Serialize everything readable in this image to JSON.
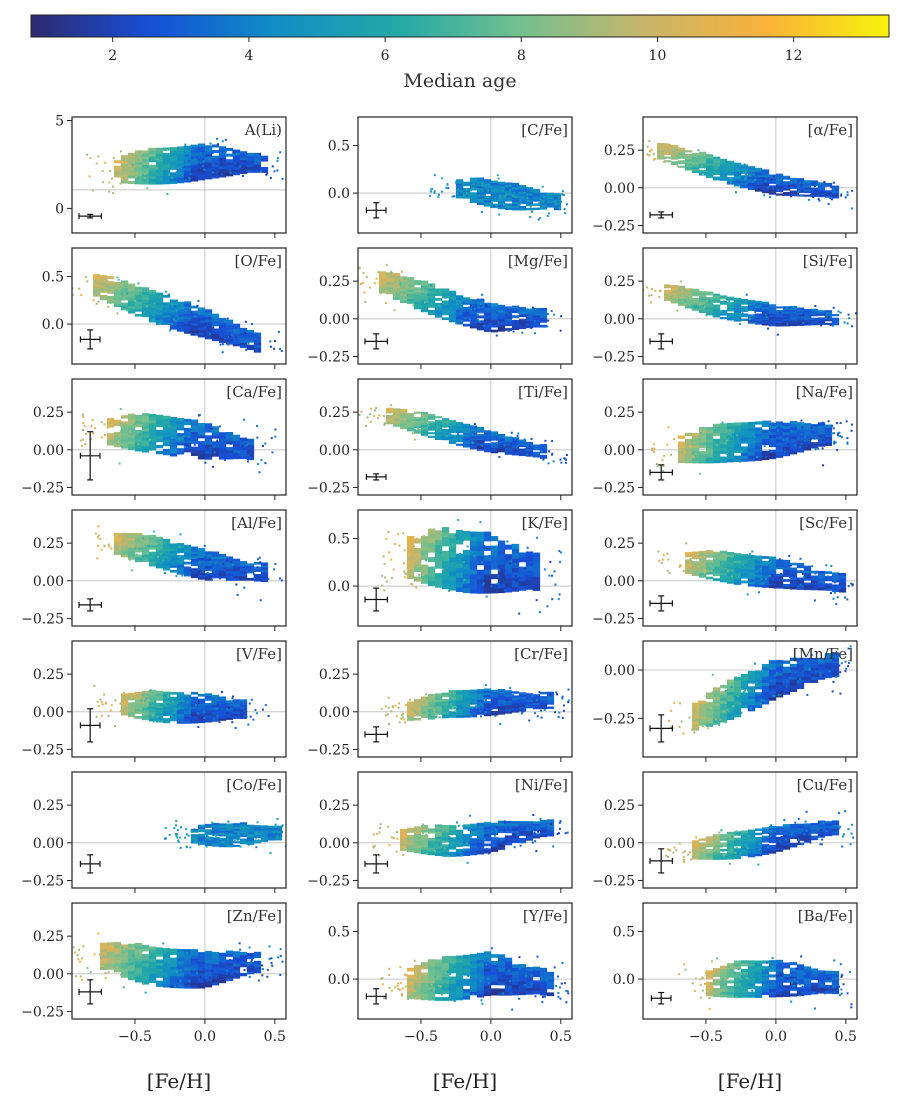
{
  "colorbar": {
    "label": "Median age",
    "range": [
      0.8,
      13.4
    ],
    "ticks": [
      "2",
      "4",
      "6",
      "8",
      "10",
      "12"
    ],
    "tick_values": [
      2,
      4,
      6,
      8,
      10,
      12
    ],
    "colormap": [
      "#2e2a6e",
      "#1650d8",
      "#0f8fc4",
      "#23a9a6",
      "#74c08f",
      "#c7b56a",
      "#f9b23a",
      "#f7f30b"
    ]
  },
  "x_axis_label": "[Fe/H]",
  "chart_data": {
    "type": "heatmap",
    "description_of_marks": "2D binned median age in [X/Fe] vs [Fe/H] planes with a typical error bar",
    "xlim": [
      -0.95,
      0.58
    ],
    "x_ticks": [
      "−0.5",
      "0.0",
      "0.5"
    ],
    "x_tick_values": [
      -0.5,
      0.0,
      0.5
    ],
    "xlabel": "[Fe/H]",
    "panels": [
      {
        "label": "A(Li)",
        "ylim": [
          -1.4,
          5.2
        ],
        "y_ticks": [
          "0",
          "5"
        ],
        "y_tick_values": [
          0,
          5
        ],
        "hline": 1.05,
        "ridge": [
          [
            -0.65,
            2.15
          ],
          [
            -0.3,
            2.4
          ],
          [
            0.0,
            2.6
          ],
          [
            0.4,
            2.6
          ]
        ],
        "spread": 0.8,
        "err": [
          0.08,
          0.1
        ],
        "old_end": "left"
      },
      {
        "label": "[C/Fe]",
        "ylim": [
          -0.42,
          0.8
        ],
        "y_ticks": [
          "0.0",
          "0.5"
        ],
        "y_tick_values": [
          0.0,
          0.5
        ],
        "hline": 0.0,
        "ridge": [
          [
            -0.25,
            0.05
          ],
          [
            0.1,
            -0.03
          ],
          [
            0.45,
            -0.1
          ]
        ],
        "spread": 0.11,
        "err": [
          0.07,
          0.08
        ],
        "old_end": "none"
      },
      {
        "label": "[α/Fe]",
        "ylim": [
          -0.3,
          0.47
        ],
        "y_ticks": [
          "−0.25",
          "0.00",
          "0.25"
        ],
        "y_tick_values": [
          -0.25,
          0.0,
          0.25
        ],
        "hline": 0.0,
        "ridge": [
          [
            -0.85,
            0.25
          ],
          [
            -0.4,
            0.12
          ],
          [
            0.0,
            0.02
          ],
          [
            0.45,
            -0.03
          ]
        ],
        "spread": 0.06,
        "err": [
          0.08,
          0.02
        ],
        "old_end": "left"
      },
      {
        "label": "[O/Fe]",
        "ylim": [
          -0.42,
          0.8
        ],
        "y_ticks": [
          "0.0",
          "0.5"
        ],
        "y_tick_values": [
          0.0,
          0.5
        ],
        "hline": 0.0,
        "ridge": [
          [
            -0.8,
            0.42
          ],
          [
            -0.4,
            0.2
          ],
          [
            0.0,
            0.0
          ],
          [
            0.4,
            -0.22
          ]
        ],
        "spread": 0.13,
        "err": [
          0.07,
          0.1
        ],
        "old_end": "left"
      },
      {
        "label": "[Mg/Fe]",
        "ylim": [
          -0.3,
          0.47
        ],
        "y_ticks": [
          "−0.25",
          "0.00",
          "0.25"
        ],
        "y_tick_values": [
          -0.25,
          0.0,
          0.25
        ],
        "hline": 0.0,
        "ridge": [
          [
            -0.8,
            0.25
          ],
          [
            -0.4,
            0.12
          ],
          [
            0.0,
            0.0
          ],
          [
            0.4,
            0.0
          ]
        ],
        "spread": 0.08,
        "err": [
          0.08,
          0.05
        ],
        "old_end": "left"
      },
      {
        "label": "[Si/Fe]",
        "ylim": [
          -0.3,
          0.47
        ],
        "y_ticks": [
          "−0.25",
          "0.00",
          "0.25"
        ],
        "y_tick_values": [
          -0.25,
          0.0,
          0.25
        ],
        "hline": 0.0,
        "ridge": [
          [
            -0.8,
            0.18
          ],
          [
            -0.4,
            0.08
          ],
          [
            0.0,
            0.02
          ],
          [
            0.45,
            0.0
          ]
        ],
        "spread": 0.06,
        "err": [
          0.08,
          0.05
        ],
        "old_end": "left"
      },
      {
        "label": "[Ca/Fe]",
        "ylim": [
          -0.3,
          0.47
        ],
        "y_ticks": [
          "−0.25",
          "0.00",
          "0.25"
        ],
        "y_tick_values": [
          -0.25,
          0.0,
          0.25
        ],
        "hline": 0.0,
        "ridge": [
          [
            -0.7,
            0.12
          ],
          [
            -0.3,
            0.1
          ],
          [
            0.0,
            0.05
          ],
          [
            0.35,
            0.0
          ]
        ],
        "spread": 0.1,
        "err": [
          0.07,
          0.16
        ],
        "old_end": "left"
      },
      {
        "label": "[Ti/Fe]",
        "ylim": [
          -0.3,
          0.47
        ],
        "y_ticks": [
          "−0.25",
          "0.00",
          "0.25"
        ],
        "y_tick_values": [
          -0.25,
          0.0,
          0.25
        ],
        "hline": 0.0,
        "ridge": [
          [
            -0.75,
            0.23
          ],
          [
            -0.4,
            0.15
          ],
          [
            0.0,
            0.05
          ],
          [
            0.4,
            -0.02
          ]
        ],
        "spread": 0.06,
        "err": [
          0.07,
          0.02
        ],
        "old_end": "left"
      },
      {
        "label": "[Na/Fe]",
        "ylim": [
          -0.3,
          0.47
        ],
        "y_ticks": [
          "−0.25",
          "0.00",
          "0.25"
        ],
        "y_tick_values": [
          -0.25,
          0.0,
          0.25
        ],
        "hline": 0.0,
        "ridge": [
          [
            -0.7,
            0.0
          ],
          [
            -0.3,
            0.05
          ],
          [
            0.0,
            0.06
          ],
          [
            0.4,
            0.1
          ]
        ],
        "spread": 0.1,
        "err": [
          0.08,
          0.05
        ],
        "old_end": "left"
      },
      {
        "label": "[Al/Fe]",
        "ylim": [
          -0.3,
          0.47
        ],
        "y_ticks": [
          "−0.25",
          "0.00",
          "0.25"
        ],
        "y_tick_values": [
          -0.25,
          0.0,
          0.25
        ],
        "hline": 0.0,
        "ridge": [
          [
            -0.65,
            0.25
          ],
          [
            -0.3,
            0.18
          ],
          [
            0.0,
            0.1
          ],
          [
            0.4,
            0.05
          ]
        ],
        "spread": 0.08,
        "err": [
          0.08,
          0.04
        ],
        "old_end": "left"
      },
      {
        "label": "[K/Fe]",
        "ylim": [
          -0.42,
          0.8
        ],
        "y_ticks": [
          "0.0",
          "0.5"
        ],
        "y_tick_values": [
          0.0,
          0.5
        ],
        "hline": 0.0,
        "ridge": [
          [
            -0.6,
            0.3
          ],
          [
            -0.3,
            0.28
          ],
          [
            0.0,
            0.22
          ],
          [
            0.35,
            0.12
          ]
        ],
        "spread": 0.25,
        "err": [
          0.08,
          0.12
        ],
        "old_end": "left"
      },
      {
        "label": "[Sc/Fe]",
        "ylim": [
          -0.3,
          0.47
        ],
        "y_ticks": [
          "−0.25",
          "0.00",
          "0.25"
        ],
        "y_tick_values": [
          -0.25,
          0.0,
          0.25
        ],
        "hline": 0.0,
        "ridge": [
          [
            -0.65,
            0.12
          ],
          [
            -0.3,
            0.08
          ],
          [
            0.0,
            0.05
          ],
          [
            0.45,
            -0.02
          ]
        ],
        "spread": 0.08,
        "err": [
          0.08,
          0.05
        ],
        "old_end": "left"
      },
      {
        "label": "[V/Fe]",
        "ylim": [
          -0.3,
          0.47
        ],
        "y_ticks": [
          "−0.25",
          "0.00",
          "0.25"
        ],
        "y_tick_values": [
          -0.25,
          0.0,
          0.25
        ],
        "hline": 0.0,
        "ridge": [
          [
            -0.6,
            0.05
          ],
          [
            -0.3,
            0.03
          ],
          [
            0.0,
            0.02
          ],
          [
            0.3,
            0.01
          ]
        ],
        "spread": 0.08,
        "err": [
          0.07,
          0.11
        ],
        "old_end": "left"
      },
      {
        "label": "[Cr/Fe]",
        "ylim": [
          -0.3,
          0.47
        ],
        "y_ticks": [
          "−0.25",
          "0.00",
          "0.25"
        ],
        "y_tick_values": [
          -0.25,
          0.0,
          0.25
        ],
        "hline": 0.0,
        "ridge": [
          [
            -0.6,
            0.0
          ],
          [
            -0.3,
            0.05
          ],
          [
            0.0,
            0.06
          ],
          [
            0.4,
            0.07
          ]
        ],
        "spread": 0.07,
        "err": [
          0.08,
          0.05
        ],
        "old_end": "left"
      },
      {
        "label": "[Mn/Fe]",
        "ylim": [
          -0.45,
          0.15
        ],
        "y_ticks": [
          "−0.25",
          "0.00"
        ],
        "y_tick_values": [
          -0.25,
          0.0
        ],
        "hline": 0.0,
        "ridge": [
          [
            -0.6,
            -0.25
          ],
          [
            -0.3,
            -0.15
          ],
          [
            0.0,
            -0.05
          ],
          [
            0.4,
            0.02
          ]
        ],
        "spread": 0.08,
        "err": [
          0.08,
          0.07
        ],
        "old_end": "left"
      },
      {
        "label": "[Co/Fe]",
        "ylim": [
          -0.3,
          0.47
        ],
        "y_ticks": [
          "−0.25",
          "0.00",
          "0.25"
        ],
        "y_tick_values": [
          -0.25,
          0.0,
          0.25
        ],
        "hline": 0.0,
        "ridge": [
          [
            -0.1,
            0.05
          ],
          [
            0.2,
            0.05
          ],
          [
            0.5,
            0.06
          ]
        ],
        "spread": 0.06,
        "err": [
          0.07,
          0.06
        ],
        "old_end": "none"
      },
      {
        "label": "[Ni/Fe]",
        "ylim": [
          -0.3,
          0.47
        ],
        "y_ticks": [
          "−0.25",
          "0.00",
          "0.25"
        ],
        "y_tick_values": [
          -0.25,
          0.0,
          0.25
        ],
        "hline": 0.0,
        "ridge": [
          [
            -0.65,
            0.02
          ],
          [
            -0.3,
            0.01
          ],
          [
            0.0,
            0.03
          ],
          [
            0.4,
            0.1
          ]
        ],
        "spread": 0.08,
        "err": [
          0.08,
          0.06
        ],
        "old_end": "left"
      },
      {
        "label": "[Cu/Fe]",
        "ylim": [
          -0.3,
          0.47
        ],
        "y_ticks": [
          "−0.25",
          "0.00",
          "0.25"
        ],
        "y_tick_values": [
          -0.25,
          0.0,
          0.25
        ],
        "hline": 0.0,
        "ridge": [
          [
            -0.6,
            -0.05
          ],
          [
            -0.3,
            -0.02
          ],
          [
            0.0,
            0.02
          ],
          [
            0.4,
            0.1
          ]
        ],
        "spread": 0.07,
        "err": [
          0.08,
          0.08
        ],
        "old_end": "left"
      },
      {
        "label": "[Zn/Fe]",
        "ylim": [
          -0.3,
          0.47
        ],
        "y_ticks": [
          "−0.25",
          "0.00",
          "0.25"
        ],
        "y_tick_values": [
          -0.25,
          0.0,
          0.25
        ],
        "hline": 0.0,
        "ridge": [
          [
            -0.75,
            0.12
          ],
          [
            -0.4,
            0.05
          ],
          [
            0.0,
            0.02
          ],
          [
            0.4,
            0.08
          ]
        ],
        "spread": 0.1,
        "err": [
          0.08,
          0.08
        ],
        "old_end": "left"
      },
      {
        "label": "[Y/Fe]",
        "ylim": [
          -0.42,
          0.8
        ],
        "y_ticks": [
          "0.0",
          "0.5"
        ],
        "y_tick_values": [
          0.0,
          0.5
        ],
        "hline": 0.0,
        "ridge": [
          [
            -0.6,
            -0.05
          ],
          [
            -0.3,
            0.0
          ],
          [
            0.0,
            0.05
          ],
          [
            0.4,
            -0.05
          ]
        ],
        "spread": 0.18,
        "err": [
          0.07,
          0.08
        ],
        "old_end": "left"
      },
      {
        "label": "[Ba/Fe]",
        "ylim": [
          -0.42,
          0.8
        ],
        "y_ticks": [
          "0.0",
          "0.5"
        ],
        "y_tick_values": [
          0.0,
          0.5
        ],
        "hline": 0.0,
        "ridge": [
          [
            -0.5,
            -0.05
          ],
          [
            -0.2,
            0.0
          ],
          [
            0.0,
            0.0
          ],
          [
            0.4,
            -0.05
          ]
        ],
        "spread": 0.15,
        "err": [
          0.07,
          0.06
        ],
        "old_end": "left"
      }
    ]
  }
}
